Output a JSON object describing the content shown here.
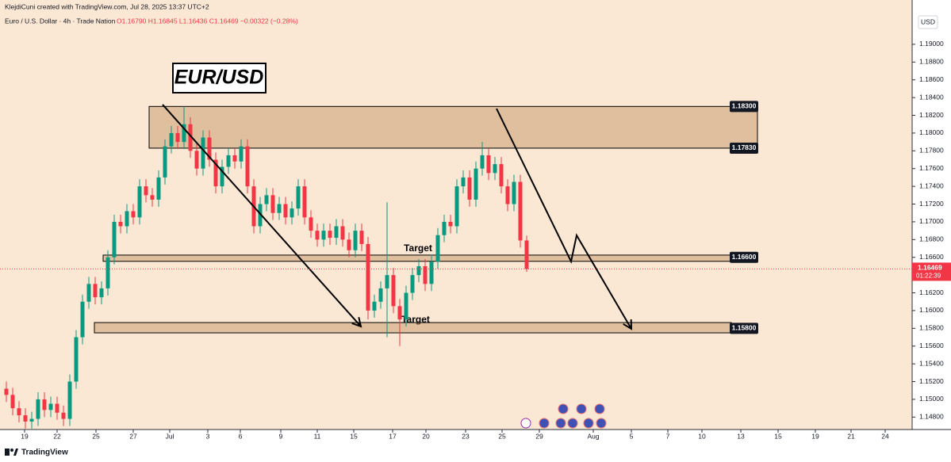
{
  "header": "KlejdiCuni created with TradingView.com, Jul 28, 2025 13:37 UTC+2",
  "symbol": "Euro / U.S. Dollar · 4h · Trade Nation",
  "legend_ohlc": "O1.16790 H1.16845 L1.16436 C1.16469 −0.00322 (−0.28%)",
  "currency": "USD",
  "footer": "TradingView",
  "chart_data": {
    "type": "candlestick",
    "title": "EUR/USD",
    "up_color": "#089981",
    "down_color": "#f23645",
    "xlim": [
      0,
      283
    ],
    "ylim": [
      1.1466,
      1.1916
    ],
    "grid": false,
    "xticks": [
      {
        "value": 5.75,
        "label": "19"
      },
      {
        "value": 16,
        "label": "22"
      },
      {
        "value": 28.25,
        "label": "25"
      },
      {
        "value": 40,
        "label": "27"
      },
      {
        "value": 51.5,
        "label": "Jul"
      },
      {
        "value": 63.5,
        "label": "3"
      },
      {
        "value": 73.75,
        "label": "6"
      },
      {
        "value": 86.5,
        "label": "9"
      },
      {
        "value": 98,
        "label": "11"
      },
      {
        "value": 109.5,
        "label": "15"
      },
      {
        "value": 121.75,
        "label": "17"
      },
      {
        "value": 132.25,
        "label": "20"
      },
      {
        "value": 144.75,
        "label": "23"
      },
      {
        "value": 156.25,
        "label": "25"
      },
      {
        "value": 168,
        "label": "29"
      },
      {
        "value": 185,
        "label": "Aug"
      },
      {
        "value": 197,
        "label": "5"
      },
      {
        "value": 208.5,
        "label": "7"
      },
      {
        "value": 219.25,
        "label": "10"
      },
      {
        "value": 231.5,
        "label": "13"
      },
      {
        "value": 243.25,
        "label": "15"
      },
      {
        "value": 255,
        "label": "19"
      },
      {
        "value": 266.25,
        "label": "21"
      },
      {
        "value": 277,
        "label": "24"
      }
    ],
    "yticks": [
      {
        "value": 1.148,
        "label": "1.14800"
      },
      {
        "value": 1.15,
        "label": "1.15000"
      },
      {
        "value": 1.152,
        "label": "1.15200"
      },
      {
        "value": 1.154,
        "label": "1.15400"
      },
      {
        "value": 1.156,
        "label": "1.15600"
      },
      {
        "value": 1.158,
        "label": "1.15800"
      },
      {
        "value": 1.16,
        "label": "1.16000"
      },
      {
        "value": 1.162,
        "label": "1.16200"
      },
      {
        "value": 1.164,
        "label": "1.16400"
      },
      {
        "value": 1.166,
        "label": "1.16600"
      },
      {
        "value": 1.168,
        "label": "1.16800"
      },
      {
        "value": 1.17,
        "label": "1.17000"
      },
      {
        "value": 1.172,
        "label": "1.17200"
      },
      {
        "value": 1.174,
        "label": "1.17400"
      },
      {
        "value": 1.176,
        "label": "1.17600"
      },
      {
        "value": 1.178,
        "label": "1.17800"
      },
      {
        "value": 1.18,
        "label": "1.18000"
      },
      {
        "value": 1.182,
        "label": "1.18200"
      },
      {
        "value": 1.184,
        "label": "1.18400"
      },
      {
        "value": 1.186,
        "label": "1.18600"
      },
      {
        "value": 1.188,
        "label": "1.18800"
      },
      {
        "value": 1.19,
        "label": "1.19000"
      }
    ],
    "x": [
      0,
      2,
      4,
      6,
      8,
      10,
      12,
      14,
      16,
      18,
      20,
      22,
      24,
      26,
      28,
      30,
      32,
      34,
      36,
      38,
      40,
      42,
      44,
      46,
      48,
      50,
      52,
      54,
      56,
      58,
      60,
      62,
      64,
      66,
      68,
      70,
      72,
      74,
      76,
      78,
      80,
      82,
      84,
      86,
      88,
      90,
      92,
      94,
      96,
      98,
      100,
      102,
      104,
      106,
      108,
      110,
      112,
      114,
      116,
      118,
      120,
      122,
      124,
      126,
      128,
      130,
      132,
      134,
      136,
      138,
      140,
      142,
      144,
      146,
      148,
      150,
      152,
      154,
      156,
      158,
      160,
      162,
      164
    ],
    "open": [
      1.1512,
      1.1505,
      1.149,
      1.1482,
      1.1475,
      1.1478,
      1.15,
      1.1488,
      1.1495,
      1.1485,
      1.1478,
      1.152,
      1.157,
      1.161,
      1.163,
      1.1615,
      1.1625,
      1.166,
      1.17,
      1.1695,
      1.1712,
      1.1705,
      1.174,
      1.173,
      1.1725,
      1.175,
      1.1785,
      1.18,
      1.179,
      1.181,
      1.178,
      1.176,
      1.1795,
      1.177,
      1.174,
      1.1762,
      1.1775,
      1.1768,
      1.1785,
      1.174,
      1.1695,
      1.172,
      1.173,
      1.171,
      1.172,
      1.1705,
      1.1715,
      1.174,
      1.1705,
      1.169,
      1.168,
      1.169,
      1.1682,
      1.1695,
      1.168,
      1.1668,
      1.169,
      1.1675,
      1.16,
      1.161,
      1.1625,
      1.164,
      1.1605,
      1.159,
      1.162,
      1.164,
      1.165,
      1.163,
      1.1655,
      1.1685,
      1.17,
      1.1695,
      1.174,
      1.175,
      1.1725,
      1.176,
      1.1775,
      1.1755,
      1.1765,
      1.174,
      1.172,
      1.1745,
      1.1679
    ],
    "high": [
      1.152,
      1.1513,
      1.1498,
      1.149,
      1.1486,
      1.1508,
      1.1508,
      1.1503,
      1.1503,
      1.1493,
      1.1528,
      1.1578,
      1.1618,
      1.1638,
      1.1638,
      1.1633,
      1.1668,
      1.1708,
      1.1708,
      1.172,
      1.172,
      1.1748,
      1.1748,
      1.1738,
      1.1758,
      1.1793,
      1.1808,
      1.1808,
      1.183,
      1.1818,
      1.1788,
      1.1803,
      1.1803,
      1.1778,
      1.177,
      1.1783,
      1.1783,
      1.1793,
      1.1793,
      1.1748,
      1.1728,
      1.1738,
      1.1738,
      1.1728,
      1.1728,
      1.1723,
      1.1748,
      1.1748,
      1.1713,
      1.1698,
      1.1698,
      1.1698,
      1.1703,
      1.1703,
      1.1688,
      1.1698,
      1.1698,
      1.1683,
      1.1618,
      1.1633,
      1.1722,
      1.1648,
      1.1613,
      1.1628,
      1.1648,
      1.1658,
      1.1658,
      1.1663,
      1.1693,
      1.1708,
      1.1708,
      1.1748,
      1.1758,
      1.1758,
      1.1768,
      1.179,
      1.1783,
      1.1773,
      1.1773,
      1.1748,
      1.1753,
      1.1753,
      1.16845
    ],
    "low": [
      1.1497,
      1.1482,
      1.1474,
      1.1467,
      1.1467,
      1.147,
      1.148,
      1.148,
      1.1477,
      1.147,
      1.147,
      1.1512,
      1.1562,
      1.1602,
      1.1607,
      1.1607,
      1.1617,
      1.1652,
      1.1687,
      1.1687,
      1.1697,
      1.1697,
      1.1722,
      1.1717,
      1.1717,
      1.1742,
      1.1777,
      1.1782,
      1.1782,
      1.1772,
      1.1752,
      1.1752,
      1.1762,
      1.1732,
      1.1732,
      1.1754,
      1.176,
      1.176,
      1.1732,
      1.1687,
      1.1687,
      1.1712,
      1.1702,
      1.1702,
      1.1697,
      1.1697,
      1.1707,
      1.1697,
      1.1682,
      1.1672,
      1.1672,
      1.1674,
      1.1674,
      1.1672,
      1.166,
      1.166,
      1.1667,
      1.159,
      1.1592,
      1.1602,
      1.157,
      1.1597,
      1.156,
      1.1582,
      1.1612,
      1.1632,
      1.1622,
      1.1622,
      1.1647,
      1.1677,
      1.1687,
      1.1687,
      1.1732,
      1.1717,
      1.1717,
      1.1752,
      1.1747,
      1.1747,
      1.1732,
      1.1712,
      1.1712,
      1.1671,
      1.16436
    ],
    "close": [
      1.1505,
      1.149,
      1.1482,
      1.1475,
      1.1478,
      1.15,
      1.1488,
      1.1495,
      1.1485,
      1.1478,
      1.152,
      1.157,
      1.161,
      1.163,
      1.1615,
      1.1625,
      1.166,
      1.17,
      1.1695,
      1.1712,
      1.1705,
      1.174,
      1.173,
      1.1725,
      1.175,
      1.1785,
      1.18,
      1.179,
      1.181,
      1.178,
      1.176,
      1.1795,
      1.177,
      1.174,
      1.1762,
      1.1775,
      1.1768,
      1.1785,
      1.174,
      1.1695,
      1.172,
      1.173,
      1.171,
      1.172,
      1.1705,
      1.1715,
      1.174,
      1.1705,
      1.169,
      1.168,
      1.169,
      1.1682,
      1.1695,
      1.168,
      1.1668,
      1.169,
      1.1675,
      1.16,
      1.161,
      1.1625,
      1.164,
      1.1605,
      1.159,
      1.162,
      1.164,
      1.165,
      1.163,
      1.1655,
      1.1685,
      1.17,
      1.1695,
      1.174,
      1.175,
      1.1725,
      1.176,
      1.1775,
      1.1755,
      1.1765,
      1.174,
      1.172,
      1.1745,
      1.1679,
      1.16469
    ],
    "zones": [
      {
        "top": 1.183,
        "bottom": 1.1783,
        "start": 45,
        "end": 236.75,
        "labels": [
          {
            "value": 1.183,
            "label": "1.18300"
          },
          {
            "value": 1.1783,
            "label": "1.17830"
          }
        ]
      },
      {
        "top": 1.16625,
        "bottom": 1.16555,
        "start": 30.5,
        "end": 228.5,
        "labels": [
          {
            "value": 1.166,
            "label": "1.16600"
          }
        ]
      },
      {
        "top": 1.15865,
        "bottom": 1.15749,
        "start": 27.75,
        "end": 228.5,
        "labels": [
          {
            "value": 1.158,
            "label": "1.15800"
          }
        ]
      }
    ],
    "drawings": [
      {
        "x": [
          49.25,
          111.75
        ],
        "y": [
          1.18321,
          1.15821
        ]
      },
      {
        "x": [
          154.5,
          178,
          179.75,
          197
        ],
        "y": [
          1.18276,
          1.16553,
          1.16848,
          1.15794
        ]
      }
    ],
    "annotations": [
      "Target",
      "Target"
    ],
    "last_price": {
      "value": 1.16469,
      "label": "1.16469"
    },
    "countdown": "01:22:39"
  }
}
